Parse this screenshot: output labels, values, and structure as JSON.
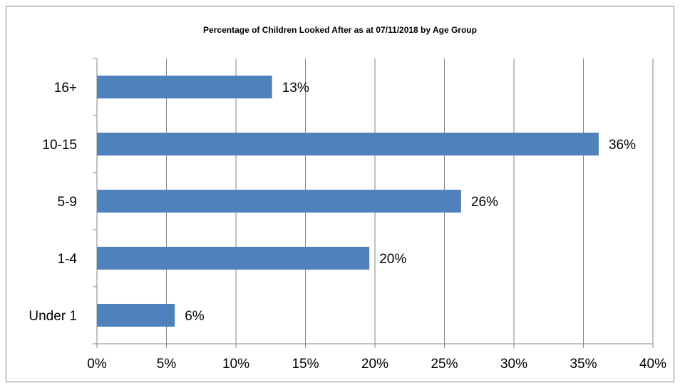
{
  "chart_data": {
    "type": "bar",
    "orientation": "horizontal",
    "title": "Percentage of Children Looked After as at 07/11/2018 by Age Group",
    "categories": [
      "16+",
      "10-15",
      "5-9",
      "1-4",
      "Under 1"
    ],
    "values": [
      12.6,
      36.1,
      26.2,
      19.6,
      5.6
    ],
    "data_labels": [
      "13%",
      "36%",
      "26%",
      "20%",
      "6%"
    ],
    "xlim": [
      0,
      40
    ],
    "x_ticks": [
      0,
      5,
      10,
      15,
      20,
      25,
      30,
      35,
      40
    ],
    "x_tick_labels": [
      "0%",
      "5%",
      "10%",
      "15%",
      "20%",
      "25%",
      "30%",
      "35%",
      "40%"
    ],
    "xlabel": "",
    "ylabel": "",
    "grid": "vertical",
    "legend": "none",
    "bar_color": "#4F81BD",
    "gridline_color": "#868686"
  }
}
